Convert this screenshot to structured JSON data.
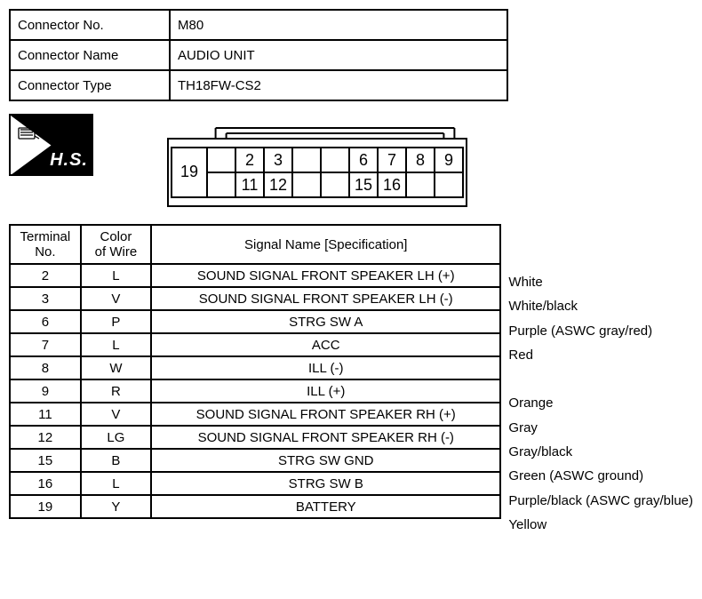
{
  "header": {
    "rows": [
      {
        "label": "Connector No.",
        "value": "M80"
      },
      {
        "label": "Connector Name",
        "value": "AUDIO UNIT"
      },
      {
        "label": "Connector Type",
        "value": "TH18FW-CS2"
      }
    ]
  },
  "hs": {
    "label": "H.S."
  },
  "connector": {
    "top_row": [
      "",
      "2",
      "3",
      "",
      "",
      "6",
      "7",
      "8",
      "9"
    ],
    "bottom_row": [
      "",
      "11",
      "12",
      "",
      "",
      "15",
      "16",
      "",
      ""
    ],
    "left_cell": "19",
    "stroke": "#000000",
    "stroke_width": 2,
    "font_size": 18
  },
  "pinout": {
    "headers": {
      "terminal": "Terminal\nNo.",
      "color": "Color\nof Wire",
      "signal": "Signal Name [Specification]"
    },
    "rows": [
      {
        "t": "2",
        "c": "L",
        "s": "SOUND SIGNAL FRONT SPEAKER LH (+)",
        "note": "White"
      },
      {
        "t": "3",
        "c": "V",
        "s": "SOUND SIGNAL FRONT SPEAKER LH (-)",
        "note": "White/black"
      },
      {
        "t": "6",
        "c": "P",
        "s": "STRG SW A",
        "note": "Purple (ASWC gray/red)"
      },
      {
        "t": "7",
        "c": "L",
        "s": "ACC",
        "note": "Red"
      },
      {
        "t": "8",
        "c": "W",
        "s": "ILL (-)",
        "note": ""
      },
      {
        "t": "9",
        "c": "R",
        "s": "ILL (+)",
        "note": "Orange"
      },
      {
        "t": "11",
        "c": "V",
        "s": "SOUND SIGNAL FRONT SPEAKER RH (+)",
        "note": "Gray"
      },
      {
        "t": "12",
        "c": "LG",
        "s": "SOUND SIGNAL FRONT SPEAKER RH (-)",
        "note": "Gray/black"
      },
      {
        "t": "15",
        "c": "B",
        "s": "STRG SW GND",
        "note": "Green (ASWC ground)"
      },
      {
        "t": "16",
        "c": "L",
        "s": "STRG SW B",
        "note": "Purple/black (ASWC gray/blue)"
      },
      {
        "t": "19",
        "c": "Y",
        "s": "BATTERY",
        "note": "Yellow"
      }
    ]
  },
  "colors": {
    "background": "#ffffff",
    "text": "#000000",
    "border": "#000000"
  }
}
